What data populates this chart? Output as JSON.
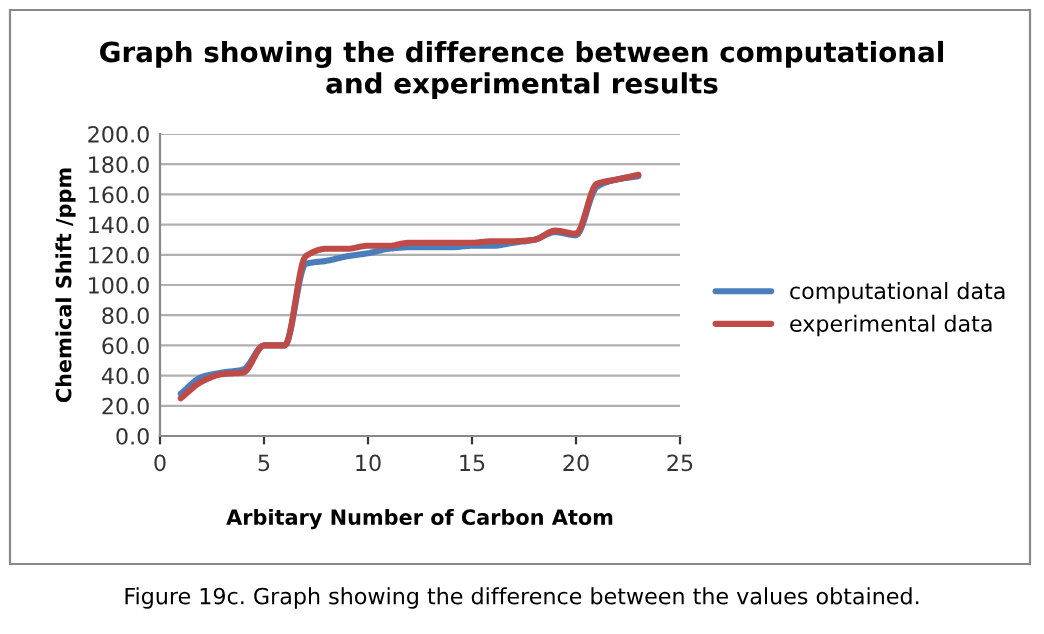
{
  "chart_data": {
    "type": "line",
    "title": "Graph showing the difference between computational\nand experimental results",
    "xlabel": "Arbitary Number of Carbon Atom",
    "ylabel": "Chemical Shift /ppm",
    "x": [
      1,
      2,
      3,
      4,
      5,
      6,
      7,
      8,
      9,
      10,
      11,
      12,
      13,
      14,
      15,
      16,
      17,
      18,
      19,
      20,
      21,
      22,
      23
    ],
    "series": [
      {
        "name": "computational data",
        "color": "#4a7ebb",
        "values": [
          28,
          39,
          42,
          44,
          60,
          60,
          114,
          116,
          119,
          121,
          124,
          125,
          125,
          125,
          126,
          126,
          128,
          130,
          135,
          133,
          165,
          170,
          172
        ]
      },
      {
        "name": "experimental data",
        "color": "#be4b48",
        "values": [
          25,
          36,
          41,
          42,
          60,
          60,
          119,
          124,
          124,
          126,
          126,
          128,
          128,
          128,
          128,
          129,
          129,
          130,
          136,
          134,
          167,
          170,
          173
        ]
      }
    ],
    "xlim": [
      0,
      25
    ],
    "xticks": [
      0,
      5,
      10,
      15,
      20,
      25
    ],
    "ylim": [
      0,
      200
    ],
    "yticks": [
      {
        "value": 0,
        "label": "0.0"
      },
      {
        "value": 20,
        "label": "20.0"
      },
      {
        "value": 40,
        "label": "40.0"
      },
      {
        "value": 60,
        "label": "60.0"
      },
      {
        "value": 80,
        "label": "80.0"
      },
      {
        "value": 100,
        "label": "100.0"
      },
      {
        "value": 120,
        "label": "120.0"
      },
      {
        "value": 140,
        "label": "140.0"
      },
      {
        "value": 160,
        "label": "160.0"
      },
      {
        "value": 180,
        "label": "180.0"
      },
      {
        "value": 200,
        "label": "200.0"
      }
    ],
    "grid": "y",
    "legend": "right",
    "marker": "none",
    "line_style": "solid",
    "annotations": [
      "Figure 19c. Graph showing the difference between the values obtained."
    ]
  }
}
